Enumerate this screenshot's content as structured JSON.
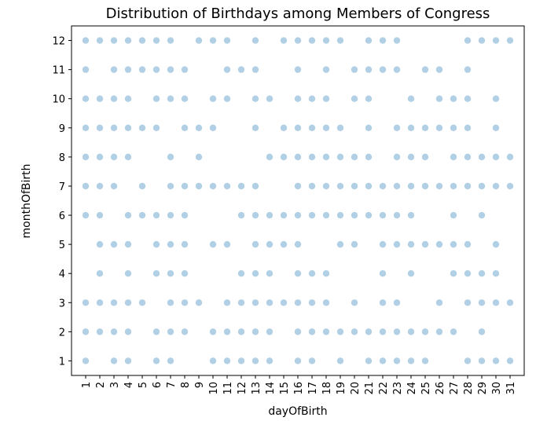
{
  "chart_data": {
    "type": "scatter",
    "title": "Distribution of Birthdays among Members of Congress",
    "xlabel": "dayOfBirth",
    "ylabel": "monthOfBirth",
    "xlim": [
      0,
      32
    ],
    "ylim": [
      0.5,
      12.5
    ],
    "xticks": [
      1,
      2,
      3,
      4,
      5,
      6,
      7,
      8,
      9,
      10,
      11,
      12,
      13,
      14,
      15,
      16,
      17,
      18,
      19,
      20,
      21,
      22,
      23,
      24,
      25,
      26,
      27,
      28,
      29,
      30,
      31
    ],
    "yticks": [
      1,
      2,
      3,
      4,
      5,
      6,
      7,
      8,
      9,
      10,
      11,
      12
    ],
    "grid": false,
    "marker_color": "#1f77b4",
    "marker_alpha": 0.35,
    "points": [
      [
        1,
        12
      ],
      [
        2,
        12
      ],
      [
        3,
        12
      ],
      [
        4,
        12
      ],
      [
        5,
        12
      ],
      [
        6,
        12
      ],
      [
        7,
        12
      ],
      [
        9,
        12
      ],
      [
        10,
        12
      ],
      [
        11,
        12
      ],
      [
        13,
        12
      ],
      [
        15,
        12
      ],
      [
        16,
        12
      ],
      [
        17,
        12
      ],
      [
        18,
        12
      ],
      [
        19,
        12
      ],
      [
        21,
        12
      ],
      [
        22,
        12
      ],
      [
        23,
        12
      ],
      [
        28,
        12
      ],
      [
        29,
        12
      ],
      [
        30,
        12
      ],
      [
        31,
        12
      ],
      [
        1,
        11
      ],
      [
        3,
        11
      ],
      [
        4,
        11
      ],
      [
        5,
        11
      ],
      [
        6,
        11
      ],
      [
        7,
        11
      ],
      [
        8,
        11
      ],
      [
        11,
        11
      ],
      [
        12,
        11
      ],
      [
        13,
        11
      ],
      [
        16,
        11
      ],
      [
        18,
        11
      ],
      [
        20,
        11
      ],
      [
        21,
        11
      ],
      [
        22,
        11
      ],
      [
        23,
        11
      ],
      [
        25,
        11
      ],
      [
        26,
        11
      ],
      [
        28,
        11
      ],
      [
        1,
        10
      ],
      [
        2,
        10
      ],
      [
        3,
        10
      ],
      [
        4,
        10
      ],
      [
        6,
        10
      ],
      [
        7,
        10
      ],
      [
        8,
        10
      ],
      [
        10,
        10
      ],
      [
        11,
        10
      ],
      [
        13,
        10
      ],
      [
        14,
        10
      ],
      [
        16,
        10
      ],
      [
        17,
        10
      ],
      [
        18,
        10
      ],
      [
        20,
        10
      ],
      [
        21,
        10
      ],
      [
        24,
        10
      ],
      [
        26,
        10
      ],
      [
        27,
        10
      ],
      [
        28,
        10
      ],
      [
        30,
        10
      ],
      [
        1,
        9
      ],
      [
        2,
        9
      ],
      [
        3,
        9
      ],
      [
        4,
        9
      ],
      [
        5,
        9
      ],
      [
        6,
        9
      ],
      [
        8,
        9
      ],
      [
        9,
        9
      ],
      [
        10,
        9
      ],
      [
        13,
        9
      ],
      [
        15,
        9
      ],
      [
        16,
        9
      ],
      [
        17,
        9
      ],
      [
        18,
        9
      ],
      [
        19,
        9
      ],
      [
        21,
        9
      ],
      [
        23,
        9
      ],
      [
        24,
        9
      ],
      [
        25,
        9
      ],
      [
        26,
        9
      ],
      [
        27,
        9
      ],
      [
        28,
        9
      ],
      [
        30,
        9
      ],
      [
        1,
        8
      ],
      [
        2,
        8
      ],
      [
        3,
        8
      ],
      [
        4,
        8
      ],
      [
        7,
        8
      ],
      [
        9,
        8
      ],
      [
        14,
        8
      ],
      [
        15,
        8
      ],
      [
        16,
        8
      ],
      [
        17,
        8
      ],
      [
        18,
        8
      ],
      [
        19,
        8
      ],
      [
        20,
        8
      ],
      [
        21,
        8
      ],
      [
        23,
        8
      ],
      [
        24,
        8
      ],
      [
        25,
        8
      ],
      [
        27,
        8
      ],
      [
        28,
        8
      ],
      [
        29,
        8
      ],
      [
        30,
        8
      ],
      [
        31,
        8
      ],
      [
        1,
        7
      ],
      [
        2,
        7
      ],
      [
        3,
        7
      ],
      [
        5,
        7
      ],
      [
        7,
        7
      ],
      [
        8,
        7
      ],
      [
        9,
        7
      ],
      [
        10,
        7
      ],
      [
        11,
        7
      ],
      [
        12,
        7
      ],
      [
        13,
        7
      ],
      [
        16,
        7
      ],
      [
        17,
        7
      ],
      [
        18,
        7
      ],
      [
        19,
        7
      ],
      [
        20,
        7
      ],
      [
        21,
        7
      ],
      [
        22,
        7
      ],
      [
        23,
        7
      ],
      [
        24,
        7
      ],
      [
        25,
        7
      ],
      [
        26,
        7
      ],
      [
        27,
        7
      ],
      [
        28,
        7
      ],
      [
        29,
        7
      ],
      [
        30,
        7
      ],
      [
        31,
        7
      ],
      [
        1,
        6
      ],
      [
        2,
        6
      ],
      [
        4,
        6
      ],
      [
        5,
        6
      ],
      [
        6,
        6
      ],
      [
        7,
        6
      ],
      [
        8,
        6
      ],
      [
        12,
        6
      ],
      [
        13,
        6
      ],
      [
        14,
        6
      ],
      [
        15,
        6
      ],
      [
        16,
        6
      ],
      [
        17,
        6
      ],
      [
        18,
        6
      ],
      [
        19,
        6
      ],
      [
        20,
        6
      ],
      [
        21,
        6
      ],
      [
        22,
        6
      ],
      [
        23,
        6
      ],
      [
        24,
        6
      ],
      [
        27,
        6
      ],
      [
        29,
        6
      ],
      [
        2,
        5
      ],
      [
        3,
        5
      ],
      [
        4,
        5
      ],
      [
        6,
        5
      ],
      [
        7,
        5
      ],
      [
        8,
        5
      ],
      [
        10,
        5
      ],
      [
        11,
        5
      ],
      [
        13,
        5
      ],
      [
        14,
        5
      ],
      [
        15,
        5
      ],
      [
        16,
        5
      ],
      [
        19,
        5
      ],
      [
        20,
        5
      ],
      [
        22,
        5
      ],
      [
        23,
        5
      ],
      [
        24,
        5
      ],
      [
        25,
        5
      ],
      [
        26,
        5
      ],
      [
        27,
        5
      ],
      [
        28,
        5
      ],
      [
        30,
        5
      ],
      [
        2,
        4
      ],
      [
        4,
        4
      ],
      [
        6,
        4
      ],
      [
        7,
        4
      ],
      [
        8,
        4
      ],
      [
        12,
        4
      ],
      [
        13,
        4
      ],
      [
        14,
        4
      ],
      [
        16,
        4
      ],
      [
        17,
        4
      ],
      [
        18,
        4
      ],
      [
        22,
        4
      ],
      [
        24,
        4
      ],
      [
        27,
        4
      ],
      [
        28,
        4
      ],
      [
        29,
        4
      ],
      [
        30,
        4
      ],
      [
        1,
        3
      ],
      [
        2,
        3
      ],
      [
        3,
        3
      ],
      [
        4,
        3
      ],
      [
        5,
        3
      ],
      [
        7,
        3
      ],
      [
        8,
        3
      ],
      [
        9,
        3
      ],
      [
        11,
        3
      ],
      [
        12,
        3
      ],
      [
        13,
        3
      ],
      [
        14,
        3
      ],
      [
        15,
        3
      ],
      [
        16,
        3
      ],
      [
        17,
        3
      ],
      [
        18,
        3
      ],
      [
        20,
        3
      ],
      [
        22,
        3
      ],
      [
        23,
        3
      ],
      [
        26,
        3
      ],
      [
        28,
        3
      ],
      [
        29,
        3
      ],
      [
        30,
        3
      ],
      [
        31,
        3
      ],
      [
        1,
        2
      ],
      [
        2,
        2
      ],
      [
        3,
        2
      ],
      [
        4,
        2
      ],
      [
        6,
        2
      ],
      [
        7,
        2
      ],
      [
        8,
        2
      ],
      [
        10,
        2
      ],
      [
        11,
        2
      ],
      [
        12,
        2
      ],
      [
        13,
        2
      ],
      [
        14,
        2
      ],
      [
        16,
        2
      ],
      [
        17,
        2
      ],
      [
        18,
        2
      ],
      [
        19,
        2
      ],
      [
        20,
        2
      ],
      [
        21,
        2
      ],
      [
        22,
        2
      ],
      [
        23,
        2
      ],
      [
        24,
        2
      ],
      [
        25,
        2
      ],
      [
        26,
        2
      ],
      [
        27,
        2
      ],
      [
        29,
        2
      ],
      [
        1,
        1
      ],
      [
        3,
        1
      ],
      [
        4,
        1
      ],
      [
        6,
        1
      ],
      [
        7,
        1
      ],
      [
        10,
        1
      ],
      [
        11,
        1
      ],
      [
        12,
        1
      ],
      [
        13,
        1
      ],
      [
        14,
        1
      ],
      [
        16,
        1
      ],
      [
        17,
        1
      ],
      [
        19,
        1
      ],
      [
        21,
        1
      ],
      [
        22,
        1
      ],
      [
        23,
        1
      ],
      [
        24,
        1
      ],
      [
        25,
        1
      ],
      [
        28,
        1
      ],
      [
        29,
        1
      ],
      [
        30,
        1
      ],
      [
        31,
        1
      ]
    ]
  }
}
